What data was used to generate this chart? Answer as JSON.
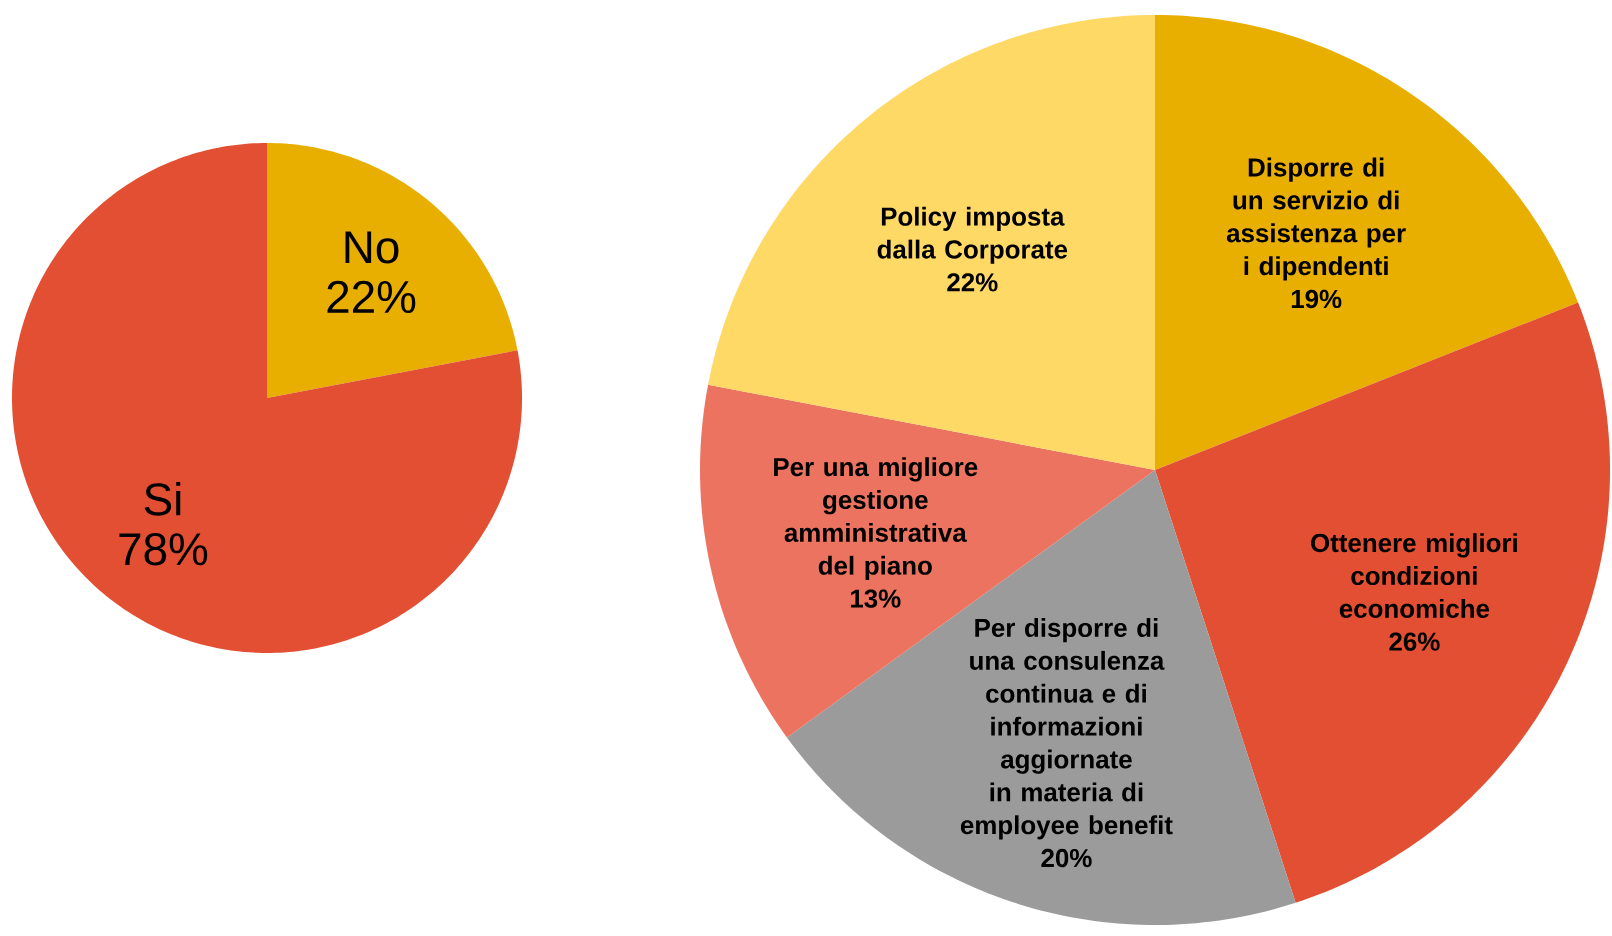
{
  "chart_data": [
    {
      "type": "pie",
      "categories": [
        "No",
        "Si"
      ],
      "values": [
        22,
        78
      ],
      "colors": [
        "#e8ae00",
        "#e34f33"
      ],
      "value_labels": [
        "22%",
        "78%"
      ]
    },
    {
      "type": "pie",
      "categories": [
        "Disporre di un servizio di assistenza per i dipendenti",
        "Ottenere migliori condizioni economiche",
        "Per disporre di una consulenza continua e di informazioni aggiornate in materia di employee benefit",
        "Per una migliore gestione amministrativa del piano",
        "Policy imposta dalla Corporate"
      ],
      "values": [
        19,
        26,
        20,
        13,
        22
      ],
      "colors": [
        "#e8ae00",
        "#e34f33",
        "#9b9b9b",
        "#eb7360",
        "#ffd966"
      ],
      "value_labels": [
        "19%",
        "26%",
        "20%",
        "13%",
        "22%"
      ]
    }
  ]
}
